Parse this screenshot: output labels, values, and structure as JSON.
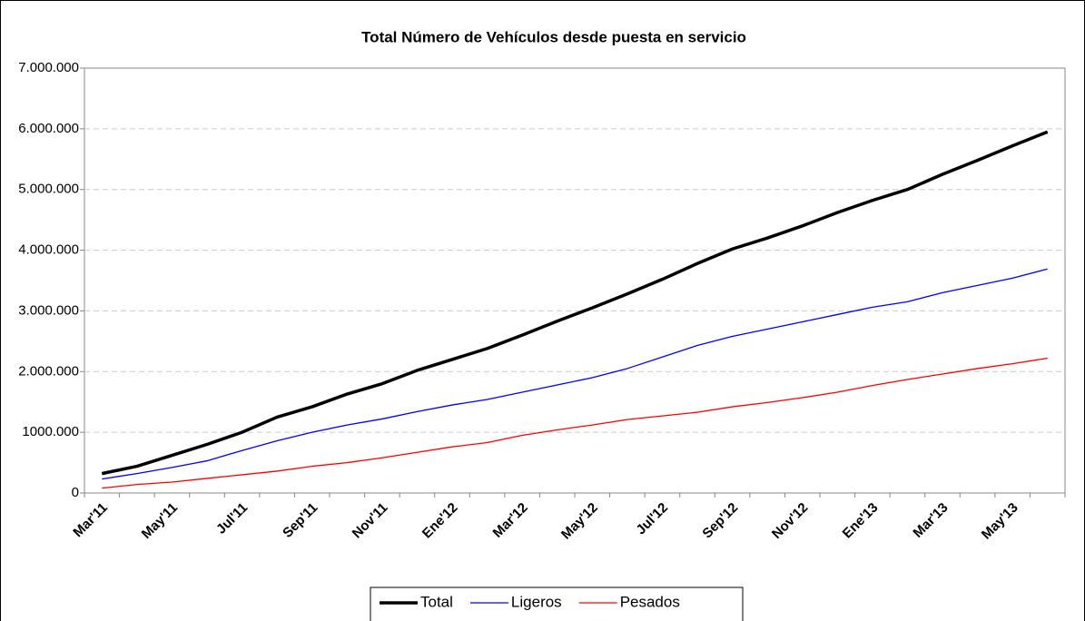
{
  "chart_data": {
    "type": "line",
    "title": "Total Número de Vehículos desde puesta en servicio",
    "categories": [
      "Mar'11",
      null,
      "May'11",
      null,
      "Jul'11",
      null,
      "Sep'11",
      null,
      "Nov'11",
      null,
      "Ene'12",
      null,
      "Mar'12",
      null,
      "May'12",
      null,
      "Jul'12",
      null,
      "Sep'12",
      null,
      "Nov'12",
      null,
      "Ene'13",
      null,
      "Mar'13",
      null,
      "May'13",
      null
    ],
    "series": [
      {
        "name": "Total",
        "color": "#000000",
        "line_width": 3.5,
        "values": [
          320000,
          440000,
          620000,
          800000,
          1000000,
          1250000,
          1420000,
          1630000,
          1800000,
          2020000,
          2200000,
          2380000,
          2600000,
          2830000,
          3050000,
          3280000,
          3520000,
          3780000,
          4020000,
          4200000,
          4400000,
          4620000,
          4820000,
          5000000,
          5250000,
          5480000,
          5720000,
          5950000
        ]
      },
      {
        "name": "Ligeros",
        "color": "#0000ff",
        "line_width": 1.3,
        "values": [
          230000,
          320000,
          420000,
          530000,
          700000,
          860000,
          1000000,
          1120000,
          1220000,
          1340000,
          1450000,
          1540000,
          1660000,
          1780000,
          1900000,
          2050000,
          2240000,
          2430000,
          2580000,
          2700000,
          2820000,
          2940000,
          3060000,
          3150000,
          3300000,
          3420000,
          3540000,
          3690000
        ]
      },
      {
        "name": "Pesados",
        "color": "#ff0000",
        "line_width": 1.3,
        "values": [
          80000,
          140000,
          180000,
          240000,
          300000,
          360000,
          440000,
          500000,
          580000,
          670000,
          760000,
          830000,
          950000,
          1040000,
          1120000,
          1210000,
          1270000,
          1330000,
          1420000,
          1490000,
          1570000,
          1660000,
          1770000,
          1870000,
          1960000,
          2050000,
          2130000,
          2220000
        ]
      }
    ],
    "ylim": [
      0,
      7000000
    ],
    "yticks": [
      0,
      {
        "value": 1000000,
        "label": "1000.000"
      },
      {
        "value": 2000000,
        "label": "2.000.000"
      },
      {
        "value": 3000000,
        "label": "3.000.000"
      },
      {
        "value": 4000000,
        "label": "4.000.000"
      },
      {
        "value": 5000000,
        "label": "5.000.000"
      },
      {
        "value": 6000000,
        "label": "6.000.000"
      },
      {
        "value": 7000000,
        "label": "7.000.000"
      }
    ],
    "grid": true
  }
}
